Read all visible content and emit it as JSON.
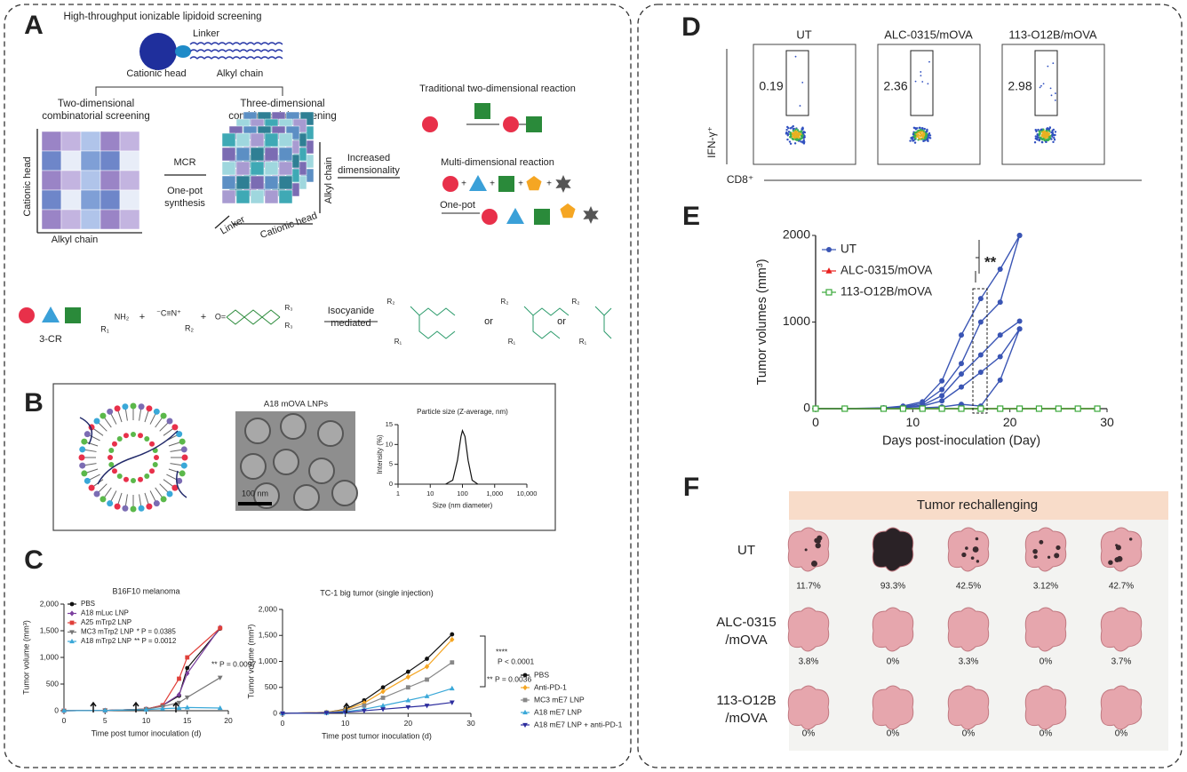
{
  "letters": [
    "A",
    "B",
    "C",
    "D",
    "E",
    "F"
  ],
  "panels": {
    "A": {
      "title": "High-throughput ionizable lipidoid screening",
      "linker": "Linker",
      "head": "Cationic head",
      "chain": "Alkyl chain",
      "two_d": [
        "Two-dimensional",
        "combinatorial screening"
      ],
      "three_d": [
        "Three-dimensional",
        "combinatorial screening"
      ],
      "grid_y": "Cationic head",
      "grid_x": "Alkyl chain",
      "mcr": "MCR",
      "one_pot": [
        "One-pot",
        "synthesis"
      ],
      "cube_linker": "Linker",
      "cube_head": "Cationic head",
      "cube_chain": "Alkyl chain",
      "increased": [
        "Increased",
        "dimensionality"
      ],
      "traditional": "Traditional two-dimensional reaction",
      "multi": "Multi-dimensional reaction",
      "one_pot_short": "One-pot",
      "three_cr": "3-CR",
      "isocyanide": [
        "Isocyanide",
        "mediated"
      ],
      "or": "or",
      "chem": {
        "r1": "R₁",
        "nh2": "NH₂",
        "cn": "⁻C≡N⁺",
        "r2": "R₂",
        "r3": "R₃",
        "plus": "+",
        "o": "O="
      }
    },
    "B": {
      "tem_title": "A18 mOVA LNPs",
      "scale": "100 nm"
    },
    "D": {
      "groups": [
        {
          "name": "UT",
          "value": "0.19"
        },
        {
          "name": "ALC-0315/mOVA",
          "value": "2.36"
        },
        {
          "name": "113-O12B/mOVA",
          "value": "2.98"
        }
      ],
      "y_axis": "IFN-γ⁺",
      "x_axis": "CD8⁺"
    },
    "F": {
      "header": "Tumor rechallenging",
      "rows": [
        {
          "label": [
            "UT"
          ],
          "values": [
            "11.7%",
            "93.3%",
            "42.5%",
            "3.12%",
            "42.7%"
          ]
        },
        {
          "label": [
            "ALC-0315",
            "/mOVA"
          ],
          "values": [
            "3.8%",
            "0%",
            "3.3%",
            "0%",
            "3.7%"
          ]
        },
        {
          "label": [
            "113-O12B",
            "/mOVA"
          ],
          "values": [
            "0%",
            "0%",
            "0%",
            "0%",
            "0%"
          ]
        }
      ]
    }
  },
  "chart_data": [
    {
      "type": "line",
      "title": "B16F10 melanoma",
      "xlabel": "Time post tumor inoculation (d)",
      "ylabel": "Tumor volume (mm³)",
      "xlim": [
        0,
        20
      ],
      "xticks": [
        0,
        5,
        10,
        15,
        20
      ],
      "ylim": [
        0,
        2000
      ],
      "yticks": [
        0,
        500,
        {
          "value": 1000,
          "label": "1,000"
        },
        {
          "value": 1500,
          "label": "1,500"
        },
        {
          "value": 2000,
          "label": "2,000"
        }
      ],
      "series": [
        {
          "name": "PBS",
          "color": "#111111",
          "marker": "circle",
          "x": [
            0,
            5,
            10,
            12,
            14,
            15,
            19
          ],
          "values": [
            0,
            5,
            30,
            100,
            280,
            800,
            1540
          ]
        },
        {
          "name": "A18 mLuc LNP",
          "color": "#7b3f9e",
          "marker": "diamond",
          "x": [
            0,
            5,
            10,
            12,
            14,
            15,
            19
          ],
          "values": [
            0,
            5,
            30,
            100,
            300,
            700,
            1560
          ]
        },
        {
          "name": "A25 mTrp2 LNP",
          "color": "#e0403a",
          "marker": "square",
          "x": [
            0,
            5,
            10,
            12,
            14,
            15,
            19
          ],
          "values": [
            0,
            5,
            30,
            100,
            600,
            1000,
            1550
          ]
        },
        {
          "name": "MC3 mTrp2 LNP",
          "note": "* P = 0.0385",
          "color": "#777777",
          "marker": "tri-down",
          "x": [
            0,
            5,
            10,
            12,
            14,
            15,
            19
          ],
          "values": [
            0,
            5,
            30,
            80,
            150,
            250,
            620
          ]
        },
        {
          "name": "A18 mTrp2 LNP",
          "note": "** P = 0.0012",
          "color": "#3aa8d8",
          "marker": "triangle",
          "x": [
            0,
            5,
            10,
            12,
            14,
            15,
            19
          ],
          "values": [
            0,
            5,
            20,
            40,
            50,
            60,
            50
          ]
        }
      ],
      "annotations": [
        "** P = 0.0097"
      ]
    },
    {
      "type": "line",
      "title": "TC-1 big tumor (single injection)",
      "xlabel": "Time post tumor inoculation (d)",
      "ylabel": "Tumor volume (mm³)",
      "xlim": [
        0,
        30
      ],
      "xticks": [
        0,
        10,
        20,
        30
      ],
      "ylim": [
        0,
        2000
      ],
      "yticks": [
        0,
        500,
        {
          "value": 1000,
          "label": "1,000"
        },
        {
          "value": 1500,
          "label": "1,500"
        },
        {
          "value": 2000,
          "label": "2,000"
        }
      ],
      "series": [
        {
          "name": "PBS",
          "color": "#111111",
          "marker": "circle",
          "x": [
            0,
            7,
            10,
            13,
            16,
            20,
            23,
            27
          ],
          "values": [
            0,
            20,
            80,
            250,
            500,
            800,
            1050,
            1520
          ]
        },
        {
          "name": "Anti-PD-1",
          "color": "#f5a623",
          "marker": "diamond",
          "x": [
            0,
            7,
            10,
            13,
            16,
            20,
            23,
            27
          ],
          "values": [
            0,
            20,
            70,
            200,
            420,
            700,
            900,
            1420
          ]
        },
        {
          "name": "MC3 mE7 LNP",
          "color": "#888888",
          "marker": "square",
          "x": [
            0,
            7,
            10,
            13,
            16,
            20,
            23,
            27
          ],
          "values": [
            0,
            15,
            50,
            150,
            300,
            500,
            650,
            980
          ]
        },
        {
          "name": "A18 mE7 LNP",
          "color": "#3aa8d8",
          "marker": "triangle",
          "x": [
            0,
            7,
            10,
            13,
            16,
            20,
            23,
            27
          ],
          "values": [
            0,
            10,
            30,
            80,
            150,
            250,
            330,
            480
          ]
        },
        {
          "name": "A18 mE7 LNP + anti-PD-1",
          "color": "#2d2d9e",
          "marker": "tri-down",
          "x": [
            0,
            7,
            10,
            13,
            16,
            20,
            23,
            27
          ],
          "values": [
            0,
            10,
            20,
            50,
            80,
            120,
            150,
            210
          ]
        }
      ],
      "annotations": [
        "****",
        "P < 0.0001",
        "** P = 0.0036"
      ]
    },
    {
      "type": "line",
      "xlabel": "Days post-inoculation (Day)",
      "ylabel": "Tumor volumes (mm³)",
      "xlim": [
        0,
        30
      ],
      "xticks": [
        0,
        10,
        20,
        30
      ],
      "ylim": [
        0,
        2000
      ],
      "yticks": [
        0,
        1000,
        2000
      ],
      "series": [
        {
          "name": "UT",
          "color": "#3a55b4",
          "marker": "circle",
          "x": [
            0,
            3,
            7,
            9,
            11,
            13,
            15,
            17,
            19,
            21
          ],
          "values": [
            0,
            0,
            10,
            30,
            80,
            320,
            850,
            1270,
            1610,
            2000
          ]
        },
        {
          "color": "#3a55b4",
          "marker": "circle",
          "x": [
            0,
            3,
            7,
            9,
            11,
            13,
            15,
            17,
            19,
            21
          ],
          "values": [
            0,
            0,
            5,
            20,
            60,
            220,
            520,
            1000,
            1230,
            2000
          ]
        },
        {
          "color": "#3a55b4",
          "marker": "circle",
          "x": [
            0,
            3,
            7,
            9,
            11,
            13,
            15,
            17,
            19,
            21
          ],
          "values": [
            0,
            0,
            5,
            15,
            40,
            150,
            400,
            620,
            850,
            1010
          ]
        },
        {
          "color": "#3a55b4",
          "marker": "circle",
          "x": [
            0,
            3,
            7,
            9,
            11,
            13,
            15,
            17,
            19,
            21
          ],
          "values": [
            0,
            0,
            0,
            10,
            30,
            90,
            250,
            420,
            600,
            920
          ]
        },
        {
          "color": "#3a55b4",
          "marker": "circle",
          "x": [
            0,
            3,
            7,
            9,
            11,
            13,
            15,
            17,
            19,
            21
          ],
          "values": [
            0,
            0,
            0,
            0,
            10,
            20,
            50,
            30,
            330,
            920
          ]
        },
        {
          "name": "ALC-0315/mOVA",
          "color": "#e8201e",
          "marker": "triangle",
          "x": [
            0,
            3,
            7,
            9,
            11,
            13,
            15,
            17,
            19,
            21,
            23,
            25,
            27,
            29
          ],
          "values": [
            0,
            0,
            0,
            0,
            0,
            0,
            0,
            0,
            0,
            0,
            0,
            0,
            0,
            0
          ]
        },
        {
          "name": "113-O12B/mOVA",
          "color": "#3aa83a",
          "marker": "open-square",
          "x": [
            0,
            3,
            7,
            9,
            11,
            13,
            15,
            17,
            19,
            21,
            23,
            25,
            27,
            29
          ],
          "values": [
            0,
            0,
            0,
            0,
            0,
            0,
            0,
            0,
            0,
            0,
            0,
            0,
            0,
            0
          ]
        }
      ],
      "annotations": [
        "**"
      ]
    },
    {
      "type": "line",
      "title": "Particle size (Z-average, nm)",
      "xlabel": "Size (nm diameter)",
      "ylabel": "Intensity (%)",
      "xlog": true,
      "xlim": [
        1,
        10000
      ],
      "xticks": [
        1,
        10,
        100,
        {
          "value": 1000,
          "label": "1,000"
        },
        {
          "value": 10000,
          "label": "10,000"
        }
      ],
      "ylim": [
        0,
        15
      ],
      "yticks": [
        0,
        5,
        10,
        15
      ],
      "series": [
        {
          "color": "#111111",
          "marker": "none",
          "x": [
            30,
            50,
            70,
            90,
            100,
            120,
            150,
            200,
            300
          ],
          "values": [
            0,
            1,
            6,
            12,
            13.5,
            12,
            6,
            1,
            0
          ]
        }
      ]
    }
  ]
}
